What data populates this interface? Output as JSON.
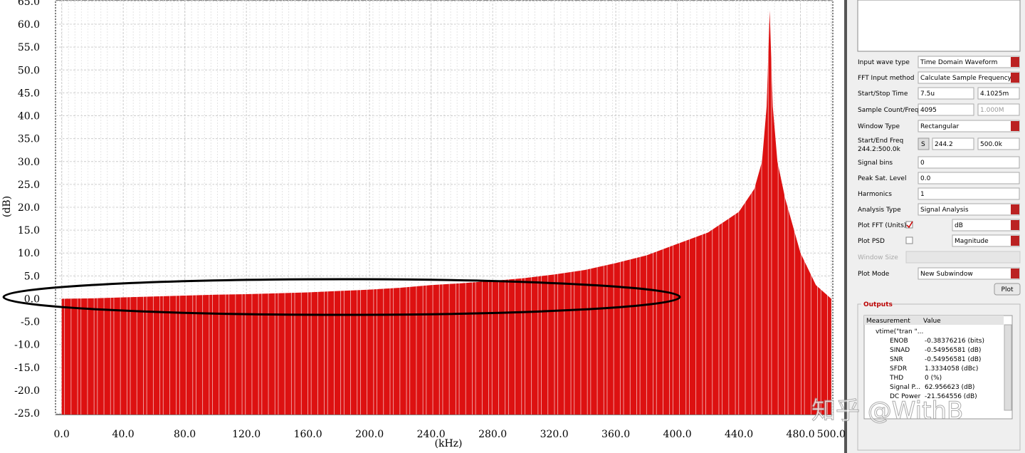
{
  "chart_data": {
    "type": "area",
    "color": "#dd1111",
    "xlabel": "(kHz)",
    "ylabel": "(dB)",
    "grid": true,
    "x": [
      0,
      20,
      40,
      60,
      80,
      100,
      120,
      140,
      160,
      180,
      200,
      220,
      240,
      260,
      280,
      300,
      320,
      340,
      360,
      380,
      400,
      420,
      440,
      450,
      455,
      458,
      460,
      462,
      465,
      470,
      475,
      480,
      490,
      500
    ],
    "values": [
      0,
      0.1,
      0.3,
      0.5,
      0.7,
      0.9,
      1.0,
      1.2,
      1.4,
      1.7,
      2.0,
      2.4,
      3.0,
      3.4,
      3.9,
      4.5,
      5.3,
      6.3,
      7.8,
      9.5,
      12,
      14.5,
      19,
      24,
      30,
      42,
      63,
      42,
      30,
      22,
      16,
      10,
      3,
      0
    ],
    "xlim": [
      -4,
      501
    ],
    "ylim": [
      -25.3,
      65.3
    ],
    "xticks": [
      {
        "value": 0,
        "label": "0.0"
      },
      {
        "value": 40,
        "label": "40.0"
      },
      {
        "value": 80,
        "label": "80.0"
      },
      {
        "value": 120,
        "label": "120.0"
      },
      {
        "value": 160,
        "label": "160.0"
      },
      {
        "value": 200,
        "label": "200.0"
      },
      {
        "value": 240,
        "label": "240.0"
      },
      {
        "value": 280,
        "label": "280.0"
      },
      {
        "value": 320,
        "label": "320.0"
      },
      {
        "value": 360,
        "label": "360.0"
      },
      {
        "value": 400,
        "label": "400.0"
      },
      {
        "value": 440,
        "label": "440.0"
      },
      {
        "value": 480,
        "label": "480.0"
      },
      {
        "value": 500,
        "label": "500.0"
      }
    ],
    "yticks": [
      {
        "value": -25,
        "label": "-25.0"
      },
      {
        "value": -20,
        "label": "-20.0"
      },
      {
        "value": -15,
        "label": "-15.0"
      },
      {
        "value": -10,
        "label": "-10.0"
      },
      {
        "value": -5,
        "label": "-5.0"
      },
      {
        "value": 0,
        "label": "0.0"
      },
      {
        "value": 5,
        "label": "5.0"
      },
      {
        "value": 10,
        "label": "10.0"
      },
      {
        "value": 15,
        "label": "15.0"
      },
      {
        "value": 20,
        "label": "20.0"
      },
      {
        "value": 25,
        "label": "25.0"
      },
      {
        "value": 30,
        "label": "30.0"
      },
      {
        "value": 35,
        "label": "35.0"
      },
      {
        "value": 40,
        "label": "40.0"
      },
      {
        "value": 45,
        "label": "45.0"
      },
      {
        "value": 50,
        "label": "50.0"
      },
      {
        "value": 55,
        "label": "55.0"
      },
      {
        "value": 60,
        "label": "60.0"
      },
      {
        "value": 65,
        "label": "65.0"
      }
    ]
  },
  "panel": {
    "rows": [
      {
        "label": "Input wave type",
        "values": [
          "Time Domain Waveform"
        ]
      },
      {
        "label": "FFT Input method",
        "values": [
          "Calculate Sample Frequency"
        ]
      },
      {
        "label": "Start/Stop Time",
        "values": [
          "7.5u",
          "4.1025m"
        ]
      },
      {
        "label": "Sample Count/Freq",
        "values": [
          "4095",
          "1.000M"
        ]
      },
      {
        "label": "Window Type",
        "values": [
          "Rectangular"
        ]
      },
      {
        "label": "Start/End Freq",
        "sublabel": "244.2:500.0k",
        "button": "S",
        "values": [
          "244.2",
          "500.0k"
        ]
      },
      {
        "label": "Signal bins",
        "values": [
          "0"
        ]
      },
      {
        "label": "Peak Sat. Level",
        "values": [
          "0.0"
        ]
      },
      {
        "label": "Harmonics",
        "values": [
          "1"
        ]
      },
      {
        "label": "Analysis Type",
        "values": [
          "Signal Analysis"
        ]
      },
      {
        "label": "Plot FFT (Units)",
        "checked": true,
        "values": [
          "dB"
        ]
      },
      {
        "label": "Plot PSD",
        "checked": false,
        "values": [
          "Magnitude"
        ]
      },
      {
        "label": "Window Size",
        "values": []
      },
      {
        "label": "Plot Mode",
        "values": [
          "New Subwindow"
        ]
      }
    ],
    "plot_button": "Plot"
  },
  "outputs": {
    "title": "Outputs",
    "header": [
      "Measurement",
      "Value"
    ],
    "root": "vtime(\"tran \"...",
    "rows": [
      [
        "ENOB",
        "-0.38376216 (bits)"
      ],
      [
        "SINAD",
        "-0.54956581 (dB)"
      ],
      [
        "SNR",
        "-0.54956581 (dB)"
      ],
      [
        "SFDR",
        "1.3334058 (dBc)"
      ],
      [
        "THD",
        "0 (%)"
      ],
      [
        "Signal P...",
        "62.956623 (dB)"
      ],
      [
        "DC Power",
        "-21.564556 (dB)"
      ]
    ]
  },
  "watermark": "知乎 @WithB"
}
